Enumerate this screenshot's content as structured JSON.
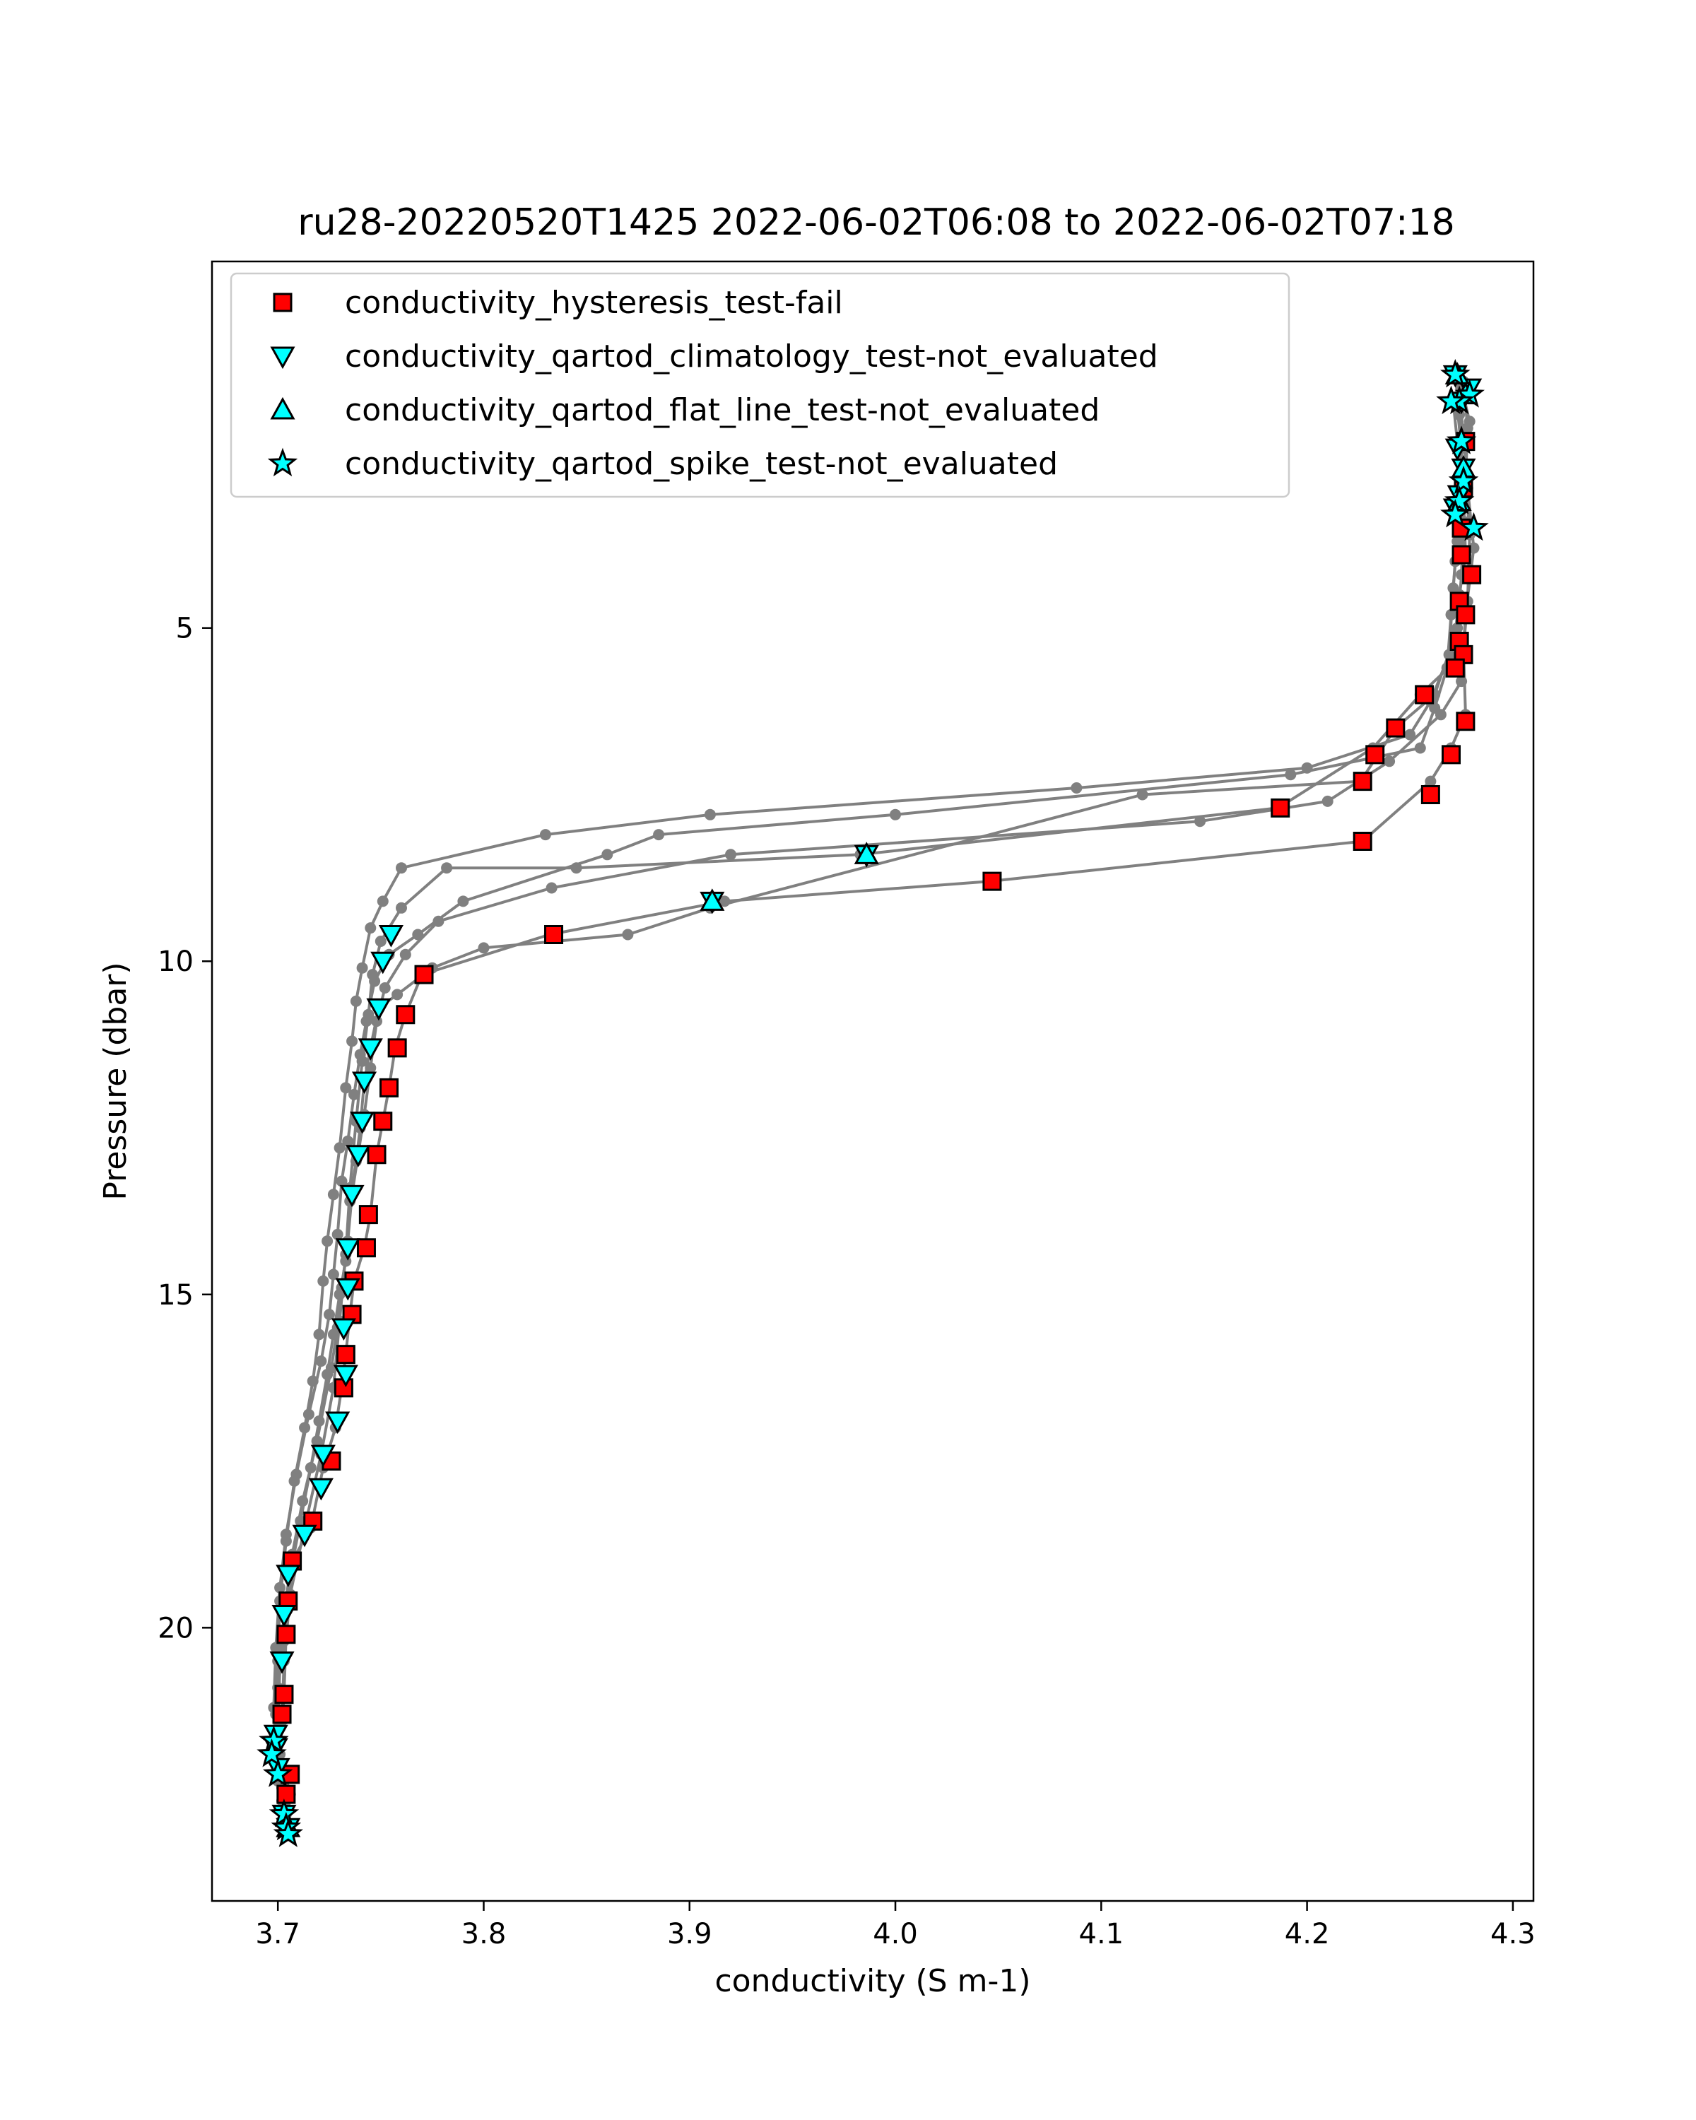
{
  "chart_data": {
    "type": "scatter",
    "title": "ru28-20220520T1425 2022-06-02T06:08 to 2022-06-02T07:18",
    "xlabel": "conductivity (S m-1)",
    "ylabel": "Pressure (dbar)",
    "xlim": [
      3.668,
      4.31
    ],
    "ylim": [
      24.1,
      -0.5
    ],
    "y_inverted": true,
    "grid": false,
    "legend_position": "top-left",
    "x_ticks": [
      {
        "value": 3.7,
        "label": "3.7"
      },
      {
        "value": 3.8,
        "label": "3.8"
      },
      {
        "value": 3.9,
        "label": "3.9"
      },
      {
        "value": 4.0,
        "label": "4.0"
      },
      {
        "value": 4.1,
        "label": "4.1"
      },
      {
        "value": 4.2,
        "label": "4.2"
      },
      {
        "value": 4.3,
        "label": "4.3"
      }
    ],
    "y_ticks": [
      {
        "value": 5,
        "label": "5"
      },
      {
        "value": 10,
        "label": "10"
      },
      {
        "value": 15,
        "label": "15"
      },
      {
        "value": 20,
        "label": "20"
      }
    ],
    "profile_color": "#808080",
    "profiles": [
      {
        "points": [
          [
            4.272,
            1.2
          ],
          [
            4.274,
            1.8
          ],
          [
            4.275,
            2.5
          ],
          [
            4.276,
            3.4
          ],
          [
            4.275,
            4.2
          ],
          [
            4.273,
            5.0
          ],
          [
            4.272,
            5.5
          ],
          [
            4.255,
            6.0
          ],
          [
            4.232,
            6.8
          ],
          [
            4.186,
            7.7
          ],
          [
            3.983,
            8.4
          ],
          [
            3.845,
            8.6
          ],
          [
            3.782,
            8.6
          ],
          [
            3.76,
            9.2
          ],
          [
            3.75,
            9.7
          ],
          [
            3.746,
            10.2
          ],
          [
            3.744,
            10.8
          ],
          [
            3.741,
            11.5
          ],
          [
            3.738,
            12.4
          ],
          [
            3.735,
            13.4
          ],
          [
            3.733,
            14.4
          ],
          [
            3.73,
            15.4
          ],
          [
            3.727,
            16.4
          ],
          [
            3.721,
            17.4
          ],
          [
            3.713,
            18.5
          ],
          [
            3.706,
            19.5
          ],
          [
            3.703,
            20.5
          ],
          [
            3.702,
            21.4
          ],
          [
            3.698,
            21.8
          ],
          [
            3.7,
            22.3
          ],
          [
            3.703,
            23.0
          ]
        ]
      },
      {
        "points": [
          [
            4.276,
            1.3
          ],
          [
            4.278,
            2.0
          ],
          [
            4.277,
            2.8
          ],
          [
            4.279,
            3.6
          ],
          [
            4.278,
            4.6
          ],
          [
            4.276,
            5.3
          ],
          [
            4.277,
            6.3
          ],
          [
            4.27,
            6.8
          ],
          [
            4.26,
            7.3
          ],
          [
            4.227,
            8.2
          ],
          [
            4.046,
            8.8
          ],
          [
            3.917,
            9.1
          ],
          [
            3.832,
            9.6
          ],
          [
            3.77,
            10.2
          ],
          [
            3.762,
            10.8
          ],
          [
            3.757,
            11.3
          ],
          [
            3.754,
            11.9
          ],
          [
            3.751,
            12.4
          ],
          [
            3.748,
            12.9
          ],
          [
            3.745,
            13.8
          ],
          [
            3.742,
            14.3
          ],
          [
            3.737,
            14.8
          ],
          [
            3.735,
            15.3
          ],
          [
            3.733,
            15.9
          ],
          [
            3.731,
            16.4
          ],
          [
            3.728,
            17.0
          ],
          [
            3.722,
            17.6
          ],
          [
            3.716,
            18.5
          ],
          [
            3.707,
            19.0
          ],
          [
            3.705,
            19.6
          ],
          [
            3.704,
            20.1
          ],
          [
            3.703,
            21.0
          ],
          [
            3.701,
            21.9
          ],
          [
            3.706,
            22.5
          ],
          [
            3.704,
            23.1
          ]
        ]
      },
      {
        "points": [
          [
            4.274,
            1.5
          ],
          [
            4.276,
            2.1
          ],
          [
            4.278,
            2.9
          ],
          [
            4.281,
            3.8
          ],
          [
            4.277,
            4.8
          ],
          [
            4.275,
            5.8
          ],
          [
            4.265,
            6.3
          ],
          [
            4.24,
            7.0
          ],
          [
            4.21,
            7.6
          ],
          [
            4.148,
            7.9
          ],
          [
            3.92,
            8.4
          ],
          [
            3.833,
            8.9
          ],
          [
            3.778,
            9.4
          ],
          [
            3.762,
            9.9
          ],
          [
            3.752,
            10.4
          ],
          [
            3.748,
            10.9
          ],
          [
            3.745,
            11.6
          ],
          [
            3.742,
            12.3
          ],
          [
            3.739,
            12.9
          ],
          [
            3.736,
            13.5
          ],
          [
            3.734,
            14.2
          ],
          [
            3.731,
            14.9
          ],
          [
            3.729,
            15.5
          ],
          [
            3.726,
            16.1
          ],
          [
            3.719,
            17.2
          ],
          [
            3.712,
            18.1
          ],
          [
            3.707,
            18.9
          ],
          [
            3.703,
            19.8
          ],
          [
            3.701,
            20.6
          ],
          [
            3.7,
            21.5
          ],
          [
            3.702,
            22.4
          ],
          [
            3.705,
            23.0
          ]
        ]
      },
      {
        "points": [
          [
            4.273,
            1.7
          ],
          [
            4.275,
            2.3
          ],
          [
            4.276,
            3.0
          ],
          [
            4.277,
            3.9
          ],
          [
            4.274,
            4.5
          ],
          [
            4.272,
            5.1
          ],
          [
            4.262,
            6.0
          ],
          [
            4.243,
            6.5
          ],
          [
            4.226,
            7.3
          ],
          [
            4.12,
            7.5
          ],
          [
            3.91,
            9.2
          ],
          [
            3.87,
            9.6
          ],
          [
            3.8,
            9.8
          ],
          [
            3.775,
            10.1
          ],
          [
            3.758,
            10.5
          ],
          [
            3.749,
            10.7
          ],
          [
            3.745,
            11.3
          ],
          [
            3.742,
            11.8
          ],
          [
            3.74,
            12.5
          ],
          [
            3.738,
            13.0
          ],
          [
            3.735,
            13.6
          ],
          [
            3.733,
            14.5
          ],
          [
            3.73,
            15.0
          ],
          [
            3.727,
            15.6
          ],
          [
            3.724,
            16.2
          ],
          [
            3.72,
            16.9
          ],
          [
            3.716,
            17.6
          ],
          [
            3.711,
            18.4
          ],
          [
            3.706,
            19.2
          ],
          [
            3.703,
            20.2
          ],
          [
            3.7,
            20.9
          ],
          [
            3.699,
            21.7
          ],
          [
            3.701,
            22.2
          ],
          [
            3.704,
            22.8
          ]
        ]
      },
      {
        "points": [
          [
            4.275,
            1.4
          ],
          [
            4.279,
            1.9
          ],
          [
            4.276,
            2.6
          ],
          [
            4.274,
            3.3
          ],
          [
            4.272,
            4.0
          ],
          [
            4.27,
            4.8
          ],
          [
            4.268,
            5.6
          ],
          [
            4.262,
            6.2
          ],
          [
            4.255,
            6.8
          ],
          [
            4.192,
            7.2
          ],
          [
            4.0,
            7.8
          ],
          [
            3.885,
            8.1
          ],
          [
            3.86,
            8.4
          ],
          [
            3.79,
            9.1
          ],
          [
            3.768,
            9.6
          ],
          [
            3.754,
            9.9
          ],
          [
            3.747,
            10.3
          ],
          [
            3.743,
            10.9
          ],
          [
            3.74,
            11.4
          ],
          [
            3.737,
            12.0
          ],
          [
            3.734,
            12.7
          ],
          [
            3.731,
            13.3
          ],
          [
            3.729,
            14.1
          ],
          [
            3.727,
            14.7
          ],
          [
            3.725,
            15.3
          ],
          [
            3.721,
            16.0
          ],
          [
            3.715,
            16.8
          ],
          [
            3.709,
            17.7
          ],
          [
            3.704,
            18.6
          ],
          [
            3.701,
            19.4
          ],
          [
            3.699,
            20.3
          ],
          [
            3.698,
            21.2
          ],
          [
            3.7,
            22.1
          ],
          [
            3.703,
            22.7
          ]
        ]
      },
      {
        "points": [
          [
            4.271,
            1.6
          ],
          [
            4.273,
            2.2
          ],
          [
            4.274,
            3.1
          ],
          [
            4.273,
            3.7
          ],
          [
            4.271,
            4.4
          ],
          [
            4.269,
            5.4
          ],
          [
            4.26,
            6.1
          ],
          [
            4.25,
            6.6
          ],
          [
            4.2,
            7.1
          ],
          [
            4.088,
            7.4
          ],
          [
            3.91,
            7.8
          ],
          [
            3.83,
            8.1
          ],
          [
            3.76,
            8.6
          ],
          [
            3.751,
            9.1
          ],
          [
            3.745,
            9.5
          ],
          [
            3.741,
            10.1
          ],
          [
            3.738,
            10.6
          ],
          [
            3.736,
            11.2
          ],
          [
            3.733,
            11.9
          ],
          [
            3.73,
            12.8
          ],
          [
            3.727,
            13.5
          ],
          [
            3.724,
            14.2
          ],
          [
            3.722,
            14.8
          ],
          [
            3.72,
            15.6
          ],
          [
            3.717,
            16.3
          ],
          [
            3.713,
            17.0
          ],
          [
            3.708,
            17.8
          ],
          [
            3.704,
            18.7
          ],
          [
            3.701,
            19.6
          ],
          [
            3.7,
            20.5
          ],
          [
            3.699,
            21.3
          ],
          [
            3.698,
            22.0
          ],
          [
            3.702,
            22.6
          ]
        ]
      }
    ],
    "series": [
      {
        "name": "conductivity_hysteresis_test-fail",
        "marker": "square",
        "color": "#ff0000",
        "points": [
          [
            4.277,
            2.2
          ],
          [
            4.276,
            2.9
          ],
          [
            4.275,
            3.5
          ],
          [
            4.275,
            3.9
          ],
          [
            4.28,
            4.2
          ],
          [
            4.274,
            4.6
          ],
          [
            4.277,
            4.8
          ],
          [
            4.274,
            5.2
          ],
          [
            4.276,
            5.4
          ],
          [
            4.272,
            5.6
          ],
          [
            4.257,
            6.0
          ],
          [
            4.243,
            6.5
          ],
          [
            4.277,
            6.4
          ],
          [
            4.233,
            6.9
          ],
          [
            4.27,
            6.9
          ],
          [
            4.227,
            7.3
          ],
          [
            4.26,
            7.5
          ],
          [
            4.187,
            7.7
          ],
          [
            4.227,
            8.2
          ],
          [
            4.047,
            8.8
          ],
          [
            3.834,
            9.6
          ],
          [
            3.771,
            10.2
          ],
          [
            3.762,
            10.8
          ],
          [
            3.758,
            11.3
          ],
          [
            3.754,
            11.9
          ],
          [
            3.751,
            12.4
          ],
          [
            3.748,
            12.9
          ],
          [
            3.744,
            13.8
          ],
          [
            3.743,
            14.3
          ],
          [
            3.737,
            14.8
          ],
          [
            3.736,
            15.3
          ],
          [
            3.733,
            15.9
          ],
          [
            3.732,
            16.4
          ],
          [
            3.726,
            17.5
          ],
          [
            3.717,
            18.4
          ],
          [
            3.707,
            19.0
          ],
          [
            3.705,
            19.6
          ],
          [
            3.704,
            20.1
          ],
          [
            3.703,
            21.0
          ],
          [
            3.702,
            21.3
          ],
          [
            3.706,
            22.2
          ],
          [
            3.704,
            22.5
          ]
        ]
      },
      {
        "name": "conductivity_qartod_climatology_test-not_evaluated",
        "marker": "triangle-down",
        "color": "#00ffff",
        "points": [
          [
            4.272,
            1.2
          ],
          [
            4.279,
            1.4
          ],
          [
            4.275,
            1.6
          ],
          [
            4.273,
            2.3
          ],
          [
            4.276,
            2.6
          ],
          [
            4.274,
            3.0
          ],
          [
            4.272,
            3.2
          ],
          [
            3.986,
            8.4
          ],
          [
            3.911,
            9.1
          ],
          [
            3.755,
            9.6
          ],
          [
            3.751,
            10.0
          ],
          [
            3.749,
            10.7
          ],
          [
            3.745,
            11.3
          ],
          [
            3.742,
            11.8
          ],
          [
            3.741,
            12.4
          ],
          [
            3.739,
            12.9
          ],
          [
            3.736,
            13.5
          ],
          [
            3.734,
            14.3
          ],
          [
            3.734,
            14.9
          ],
          [
            3.732,
            15.5
          ],
          [
            3.733,
            16.2
          ],
          [
            3.729,
            16.9
          ],
          [
            3.722,
            17.4
          ],
          [
            3.721,
            17.9
          ],
          [
            3.713,
            18.6
          ],
          [
            3.705,
            19.2
          ],
          [
            3.703,
            19.8
          ],
          [
            3.702,
            20.5
          ],
          [
            3.699,
            21.6
          ],
          [
            3.699,
            21.8
          ],
          [
            3.7,
            22.1
          ],
          [
            3.703,
            22.8
          ],
          [
            3.705,
            23.0
          ]
        ]
      },
      {
        "name": "conductivity_qartod_flat_line_test-not_evaluated",
        "marker": "triangle-up",
        "color": "#00ffff",
        "points": [
          [
            4.273,
            1.2
          ],
          [
            4.277,
            1.5
          ],
          [
            4.276,
            2.6
          ],
          [
            4.274,
            3.1
          ],
          [
            3.986,
            8.4
          ],
          [
            3.911,
            9.1
          ],
          [
            3.705,
            23.0
          ]
        ]
      },
      {
        "name": "conductivity_qartod_spike_test-not_evaluated",
        "marker": "star",
        "color": "#00ffff",
        "points": [
          [
            4.272,
            1.2
          ],
          [
            4.279,
            1.5
          ],
          [
            4.274,
            1.6
          ],
          [
            4.27,
            1.6
          ],
          [
            4.275,
            2.2
          ],
          [
            4.276,
            2.8
          ],
          [
            4.274,
            3.1
          ],
          [
            4.272,
            3.3
          ],
          [
            4.281,
            3.5
          ],
          [
            3.698,
            21.7
          ],
          [
            3.697,
            21.9
          ],
          [
            3.7,
            22.2
          ],
          [
            3.703,
            22.8
          ],
          [
            3.704,
            23.0
          ],
          [
            3.705,
            23.1
          ]
        ]
      }
    ]
  }
}
